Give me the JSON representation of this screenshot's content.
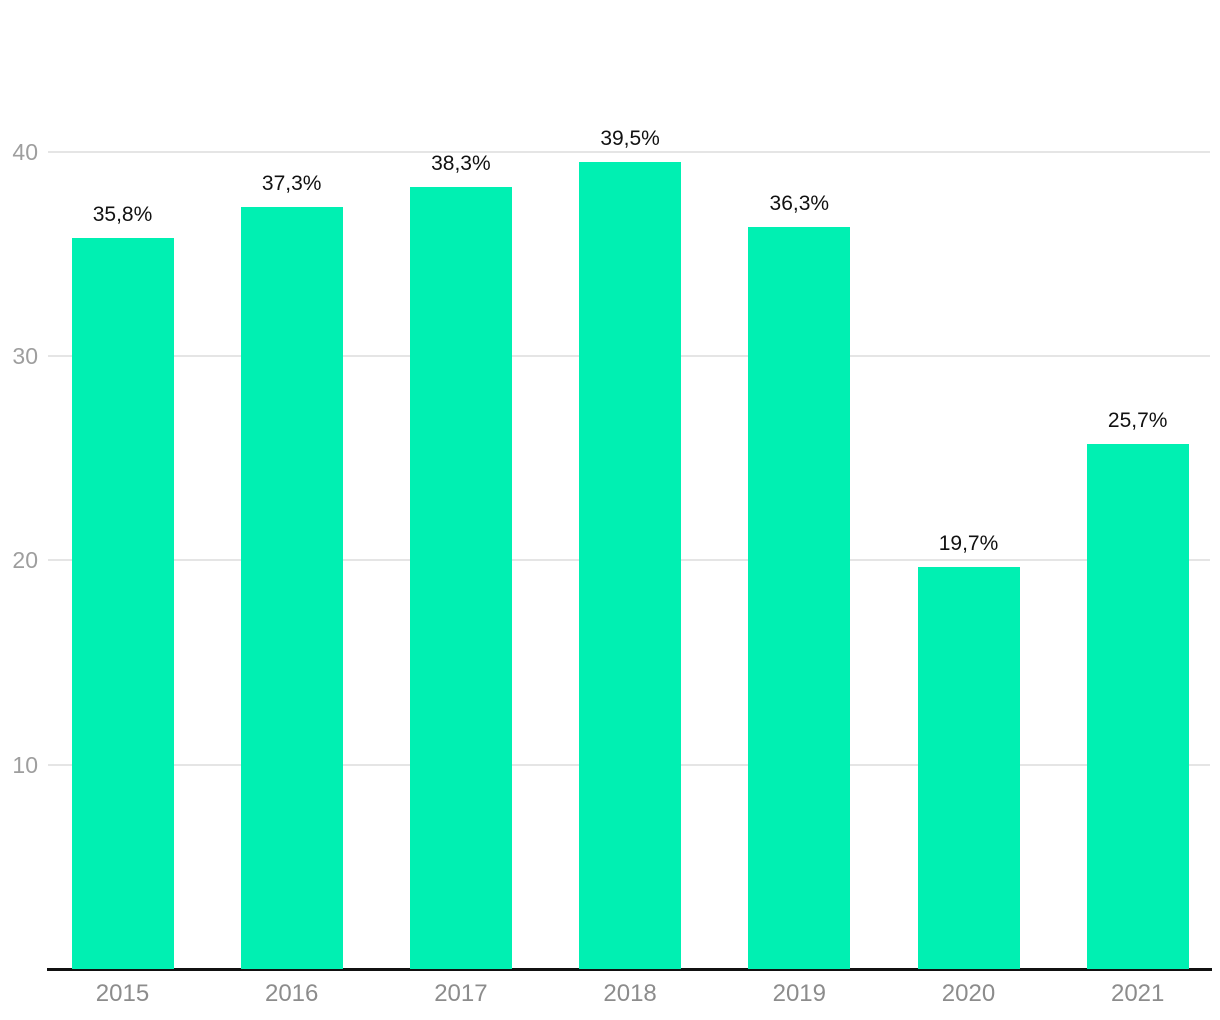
{
  "chart_data": {
    "type": "bar",
    "categories": [
      "2015",
      "2016",
      "2017",
      "2018",
      "2019",
      "2020",
      "2021"
    ],
    "values": [
      35.8,
      37.3,
      38.3,
      39.5,
      36.3,
      19.7,
      25.7
    ],
    "value_labels": [
      "35,8%",
      "37,3%",
      "38,3%",
      "39,5%",
      "36,3%",
      "19,7%",
      "25,7%"
    ],
    "title": "",
    "xlabel": "",
    "ylabel": "",
    "ylim": [
      0,
      47.5
    ],
    "yticks": [
      10,
      20,
      30,
      40
    ],
    "grid": true,
    "legend": false,
    "colors": {
      "bar": "#00F0B2",
      "value_label": "#111111",
      "y_tick_label": "#9e9e9e",
      "x_tick_label": "#8c8c8c",
      "gridline": "#e5e5e5",
      "axis_line": "#111111",
      "background": "#ffffff"
    }
  }
}
